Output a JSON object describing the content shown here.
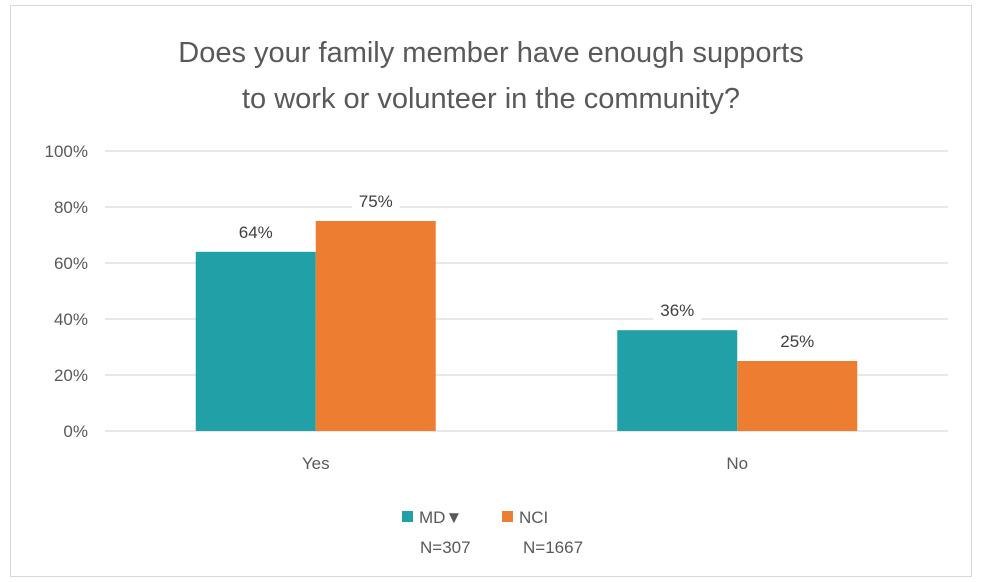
{
  "chart_data": {
    "type": "bar",
    "title_lines": [
      "Does your family member have enough supports",
      "to work or volunteer in the community?"
    ],
    "categories": [
      "Yes",
      "No"
    ],
    "series": [
      {
        "name": "MD▼",
        "n_label": "N=307",
        "values": [
          64,
          36
        ],
        "color": "#22A0A8"
      },
      {
        "name": "NCI",
        "n_label": "N=1667",
        "values": [
          75,
          25
        ],
        "color": "#ED7D31"
      }
    ],
    "data_labels": [
      [
        "64%",
        "36%"
      ],
      [
        "75%",
        "25%"
      ]
    ],
    "ylim": [
      0,
      100
    ],
    "y_ticks": [
      0,
      20,
      40,
      60,
      80,
      100
    ],
    "y_tick_labels": [
      "0%",
      "20%",
      "40%",
      "60%",
      "80%",
      "100%"
    ],
    "grid": true,
    "legend_position": "bottom"
  },
  "colors": {
    "grid": "#D9D9D9",
    "text": "#595959"
  }
}
